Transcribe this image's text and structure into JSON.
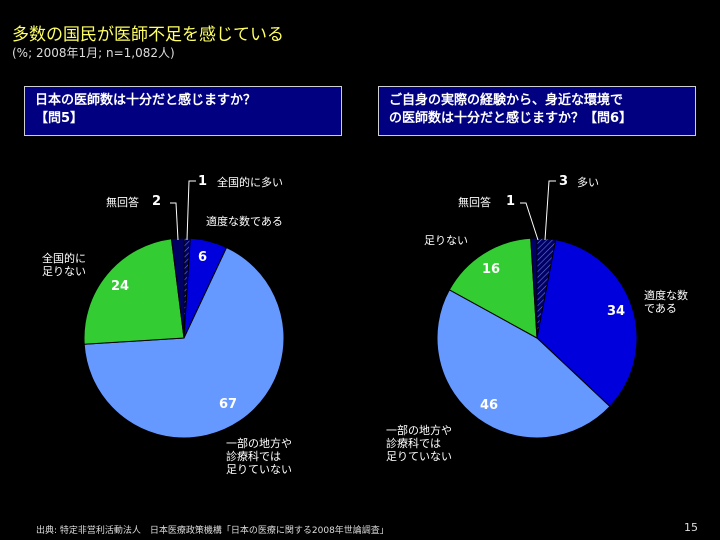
{
  "header": {
    "title": "多数の国民が医師不足を感じている",
    "subtitle": "(%; 2008年1月; n=1,082人)"
  },
  "questions": {
    "left": [
      "日本の医師数は十分だと感じますか？",
      "【問5】"
    ],
    "right": [
      "ご自身の実際の経験から、身近な環境で",
      "の医師数は十分だと感じますか？【問6】"
    ]
  },
  "colors": {
    "blue": "#0000dd",
    "light_blue": "#6699ff",
    "green": "#33cc33",
    "navy": "#000066",
    "hatch": "#333399"
  },
  "chart_data": [
    {
      "type": "pie",
      "slices": [
        {
          "label": "全国的に多い",
          "value": 1
        },
        {
          "label": "適度な数である",
          "value": 6
        },
        {
          "label": "一部の地方や診療科では足りていない",
          "value": 67
        },
        {
          "label": "全国的に足りない",
          "value": 24
        },
        {
          "label": "無回答",
          "value": 2
        }
      ]
    },
    {
      "type": "pie",
      "slices": [
        {
          "label": "多い",
          "value": 3
        },
        {
          "label": "適度な数である",
          "value": 34
        },
        {
          "label": "一部の地方や診療科では足りていない",
          "value": 46
        },
        {
          "label": "足りない",
          "value": 16
        },
        {
          "label": "無回答",
          "value": 1
        }
      ]
    }
  ],
  "labels": {
    "left": {
      "zenkoku_ooi": "全国的に多い",
      "tekido": "適度な数である",
      "ichibu": [
        "一部の地方や",
        "診療科では",
        "足りていない"
      ],
      "zenkoku_tarinai": [
        "全国的に",
        "足りない"
      ],
      "mukaitou": "無回答"
    },
    "right": {
      "ooi": "多い",
      "tekido": [
        "適度な数",
        "である"
      ],
      "ichibu": [
        "一部の地方や",
        "診療科では",
        "足りていない"
      ],
      "tarinai": "足りない",
      "mukaitou": "無回答"
    }
  },
  "values": {
    "left": {
      "ooi": "1",
      "tekido": "6",
      "ichibu": "67",
      "tarinai": "24",
      "mukaitou": "2"
    },
    "right": {
      "ooi": "3",
      "tekido": "34",
      "ichibu": "46",
      "tarinai": "16",
      "mukaitou": "1"
    }
  },
  "footer": {
    "source": "出典: 特定非営利活動法人　日本医療政策機構「日本の医療に関する2008年世論調査」",
    "page": "15"
  }
}
